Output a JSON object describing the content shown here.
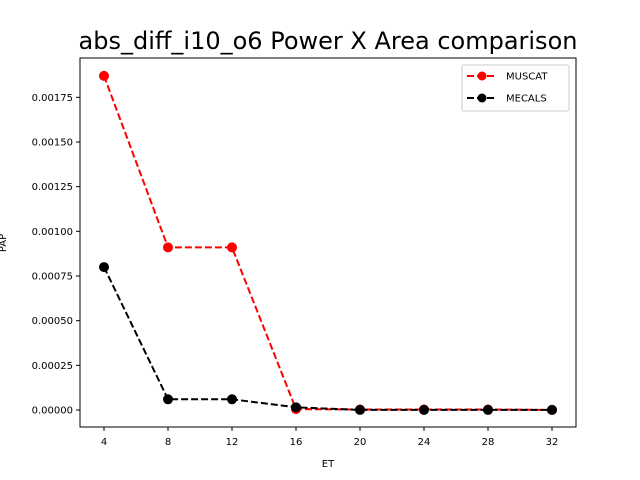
{
  "chart_data": {
    "type": "line",
    "title": "abs_diff_i10_o6 Power X Area comparison",
    "xlabel": "ET",
    "ylabel": "PAP",
    "x": [
      4,
      8,
      12,
      16,
      20,
      24,
      28,
      32
    ],
    "xlim": [
      2.5,
      33.5
    ],
    "ylim": [
      -9.5e-05,
      0.00197
    ],
    "xticks": [
      4,
      8,
      12,
      16,
      20,
      24,
      28,
      32
    ],
    "yticks": [
      0,
      0.00025,
      0.0005,
      0.00075,
      0.001,
      0.00125,
      0.0015,
      0.00175
    ],
    "ytick_labels": [
      "0.00000",
      "0.00025",
      "0.00050",
      "0.00075",
      "0.00100",
      "0.00125",
      "0.00150",
      "0.00175"
    ],
    "legend_position": "top-right",
    "grid": false,
    "series": [
      {
        "name": "MUSCAT",
        "color": "#ff0000",
        "style": "dashed",
        "marker": "circle",
        "values": [
          0.00187,
          0.00091,
          0.00091,
          5e-06,
          3e-06,
          3e-06,
          3e-06,
          5e-07
        ]
      },
      {
        "name": "MECALS",
        "color": "#000000",
        "style": "dashed",
        "marker": "circle",
        "values": [
          0.0008,
          6e-05,
          6e-05,
          1.5e-05,
          5e-07,
          5e-07,
          5e-07,
          5e-07
        ]
      }
    ]
  }
}
